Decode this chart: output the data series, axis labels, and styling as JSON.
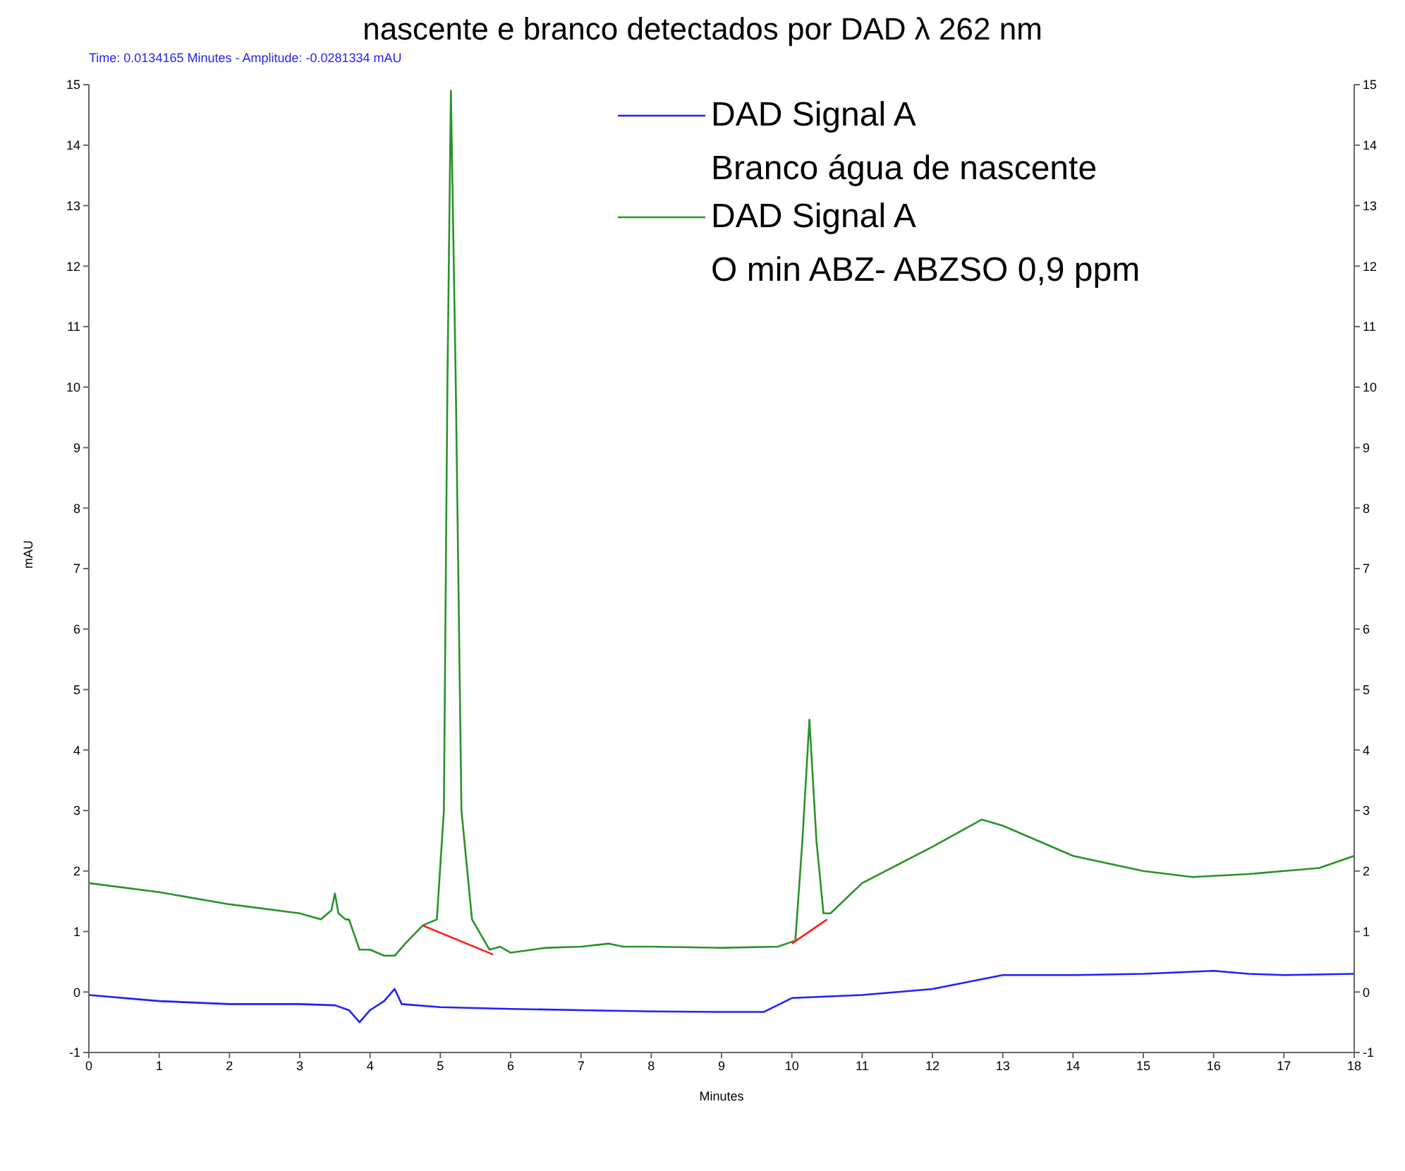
{
  "chart_data": {
    "type": "line",
    "title": "nascente e branco detectados por DAD λ 262 nm",
    "xlabel": "Minutes",
    "ylabel": "mAU",
    "annotations": [
      "Time:  0.0134165 Minutes - Amplitude:  -0.0281334 mAU",
      "Branco água de nascente",
      "O min ABZ- ABZSO 0,9 ppm"
    ],
    "xlim": [
      0,
      18
    ],
    "xticks": [
      0,
      1,
      2,
      3,
      4,
      5,
      6,
      7,
      8,
      9,
      10,
      11,
      12,
      13,
      14,
      15,
      16,
      17,
      18
    ],
    "ylim": [
      -1,
      15
    ],
    "yticks": [
      -1,
      0,
      1,
      2,
      3,
      4,
      5,
      6,
      7,
      8,
      9,
      10,
      11,
      12,
      13,
      14,
      15
    ],
    "y2lim": [
      -1,
      15
    ],
    "y2ticks": [
      -1,
      0,
      1,
      2,
      3,
      4,
      5,
      6,
      7,
      8,
      9,
      10,
      11,
      12,
      13,
      14,
      15
    ],
    "legend": "top right",
    "marker": "none",
    "line_style": "solid",
    "series": [
      {
        "name": "DAD Signal A",
        "color": "#1f1fff",
        "x": [
          0,
          1,
          2,
          3,
          3.5,
          3.7,
          3.85,
          4.0,
          4.2,
          4.35,
          4.45,
          5,
          6,
          7,
          8,
          9,
          9.6,
          10,
          11,
          12,
          13,
          14,
          15,
          16,
          16.5,
          17,
          18
        ],
        "values": [
          -0.05,
          -0.15,
          -0.2,
          -0.2,
          -0.22,
          -0.3,
          -0.5,
          -0.3,
          -0.15,
          0.05,
          -0.2,
          -0.25,
          -0.28,
          -0.3,
          -0.32,
          -0.33,
          -0.33,
          -0.1,
          -0.05,
          0.05,
          0.28,
          0.28,
          0.3,
          0.35,
          0.3,
          0.28,
          0.3
        ]
      },
      {
        "name": "DAD Signal A",
        "color": "#2a922a",
        "x": [
          0,
          1,
          2,
          3,
          3.3,
          3.45,
          3.5,
          3.55,
          3.65,
          3.7,
          3.85,
          4.0,
          4.2,
          4.35,
          4.5,
          4.75,
          4.95,
          5.05,
          5.1,
          5.15,
          5.22,
          5.3,
          5.45,
          5.7,
          5.85,
          6.0,
          6.5,
          7,
          7.4,
          7.6,
          8,
          9,
          9.8,
          10.05,
          10.15,
          10.25,
          10.35,
          10.45,
          10.55,
          11,
          12,
          12.7,
          13,
          14,
          15,
          15.7,
          16.5,
          17,
          17.5,
          18
        ],
        "values": [
          1.8,
          1.65,
          1.45,
          1.3,
          1.2,
          1.35,
          1.63,
          1.3,
          1.2,
          1.2,
          0.7,
          0.7,
          0.6,
          0.6,
          0.8,
          1.1,
          1.2,
          3,
          10,
          14.9,
          10,
          3,
          1.2,
          0.7,
          0.75,
          0.65,
          0.73,
          0.75,
          0.8,
          0.75,
          0.75,
          0.73,
          0.75,
          0.85,
          2.5,
          4.5,
          2.5,
          1.3,
          1.3,
          1.8,
          2.4,
          2.85,
          2.75,
          2.25,
          2.0,
          1.9,
          1.95,
          2.0,
          2.05,
          2.25
        ]
      },
      {
        "color": "#ff2020",
        "x": [
          4.75,
          5.75
        ],
        "values": [
          1.1,
          0.62
        ]
      },
      {
        "color": "#ff2020",
        "x": [
          10.0,
          10.5
        ],
        "values": [
          0.8,
          1.2
        ]
      }
    ]
  }
}
